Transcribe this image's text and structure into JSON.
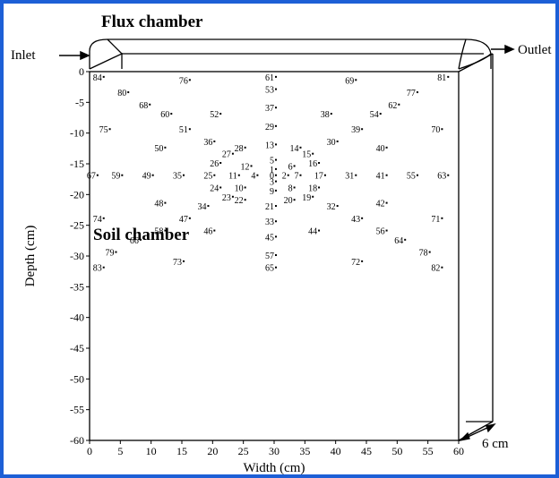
{
  "frame_color": "#1d5fd6",
  "labels": {
    "flux_chamber": "Flux chamber",
    "soil_chamber": "Soil chamber",
    "inlet": "Inlet",
    "outlet": "Outlet",
    "depth_cm": "6 cm",
    "x_axis": "Width (cm)",
    "y_axis": "Depth (cm)"
  },
  "axes": {
    "x_range": [
      0,
      60
    ],
    "y_range": [
      -60,
      0
    ],
    "x_ticks": [
      0,
      5,
      10,
      15,
      20,
      25,
      30,
      35,
      40,
      45,
      50,
      55,
      60
    ],
    "y_ticks": [
      0,
      -5,
      -10,
      -15,
      -20,
      -25,
      -30,
      -35,
      -40,
      -45,
      -50,
      -55,
      -60
    ]
  },
  "chart_data": {
    "type": "scatter",
    "xlabel": "Width (cm)",
    "ylabel": "Depth (cm)",
    "xlim": [
      0,
      60
    ],
    "ylim": [
      -60,
      0
    ],
    "points": [
      {
        "id": "84",
        "x": 2,
        "y": -1
      },
      {
        "id": "76",
        "x": 16,
        "y": -1.5
      },
      {
        "id": "61",
        "x": 30,
        "y": -1
      },
      {
        "id": "69",
        "x": 43,
        "y": -1.5
      },
      {
        "id": "81",
        "x": 58,
        "y": -1
      },
      {
        "id": "80",
        "x": 6,
        "y": -3.5
      },
      {
        "id": "53",
        "x": 30,
        "y": -3
      },
      {
        "id": "77",
        "x": 53,
        "y": -3.5
      },
      {
        "id": "68",
        "x": 9.5,
        "y": -5.5
      },
      {
        "id": "37",
        "x": 30,
        "y": -6
      },
      {
        "id": "62",
        "x": 50,
        "y": -5.5
      },
      {
        "id": "60",
        "x": 13,
        "y": -7
      },
      {
        "id": "52",
        "x": 21,
        "y": -7
      },
      {
        "id": "38",
        "x": 39,
        "y": -7
      },
      {
        "id": "54",
        "x": 47,
        "y": -7
      },
      {
        "id": "75",
        "x": 3,
        "y": -9.5
      },
      {
        "id": "51",
        "x": 16,
        "y": -9.5
      },
      {
        "id": "29",
        "x": 30,
        "y": -9
      },
      {
        "id": "39",
        "x": 44,
        "y": -9.5
      },
      {
        "id": "70",
        "x": 57,
        "y": -9.5
      },
      {
        "id": "36",
        "x": 20,
        "y": -11.5
      },
      {
        "id": "30",
        "x": 40,
        "y": -11.5
      },
      {
        "id": "50",
        "x": 12,
        "y": -12.5
      },
      {
        "id": "28",
        "x": 25,
        "y": -12.5
      },
      {
        "id": "13",
        "x": 30,
        "y": -12
      },
      {
        "id": "14",
        "x": 34,
        "y": -12.5
      },
      {
        "id": "40",
        "x": 48,
        "y": -12.5
      },
      {
        "id": "27",
        "x": 23,
        "y": -13.5
      },
      {
        "id": "15",
        "x": 36,
        "y": -13.5
      },
      {
        "id": "5",
        "x": 30,
        "y": -14.5
      },
      {
        "id": "26",
        "x": 21,
        "y": -15
      },
      {
        "id": "12",
        "x": 26,
        "y": -15.5
      },
      {
        "id": "6",
        "x": 33,
        "y": -15.5
      },
      {
        "id": "16",
        "x": 37,
        "y": -15
      },
      {
        "id": "1",
        "x": 30,
        "y": -16
      },
      {
        "id": "67",
        "x": 1,
        "y": -17
      },
      {
        "id": "59",
        "x": 5,
        "y": -17
      },
      {
        "id": "49",
        "x": 10,
        "y": -17
      },
      {
        "id": "35",
        "x": 15,
        "y": -17
      },
      {
        "id": "25",
        "x": 20,
        "y": -17
      },
      {
        "id": "11",
        "x": 24,
        "y": -17
      },
      {
        "id": "4",
        "x": 27,
        "y": -17
      },
      {
        "id": "0",
        "x": 30,
        "y": -17
      },
      {
        "id": "2",
        "x": 32,
        "y": -17
      },
      {
        "id": "7",
        "x": 34,
        "y": -17
      },
      {
        "id": "17",
        "x": 38,
        "y": -17
      },
      {
        "id": "31",
        "x": 43,
        "y": -17
      },
      {
        "id": "41",
        "x": 48,
        "y": -17
      },
      {
        "id": "55",
        "x": 53,
        "y": -17
      },
      {
        "id": "63",
        "x": 58,
        "y": -17
      },
      {
        "id": "3",
        "x": 30,
        "y": -18
      },
      {
        "id": "24",
        "x": 21,
        "y": -19
      },
      {
        "id": "10",
        "x": 25,
        "y": -19
      },
      {
        "id": "8",
        "x": 33,
        "y": -19
      },
      {
        "id": "18",
        "x": 37,
        "y": -19
      },
      {
        "id": "9",
        "x": 30,
        "y": -19.5
      },
      {
        "id": "23",
        "x": 23,
        "y": -20.5
      },
      {
        "id": "19",
        "x": 36,
        "y": -20.5
      },
      {
        "id": "22",
        "x": 25,
        "y": -21
      },
      {
        "id": "20",
        "x": 33,
        "y": -21
      },
      {
        "id": "48",
        "x": 12,
        "y": -21.5
      },
      {
        "id": "21",
        "x": 30,
        "y": -22
      },
      {
        "id": "42",
        "x": 48,
        "y": -21.5
      },
      {
        "id": "34",
        "x": 19,
        "y": -22
      },
      {
        "id": "32",
        "x": 40,
        "y": -22
      },
      {
        "id": "74",
        "x": 2,
        "y": -24
      },
      {
        "id": "47",
        "x": 16,
        "y": -24
      },
      {
        "id": "33",
        "x": 30,
        "y": -24.5
      },
      {
        "id": "43",
        "x": 44,
        "y": -24
      },
      {
        "id": "71",
        "x": 57,
        "y": -24
      },
      {
        "id": "58",
        "x": 12,
        "y": -26
      },
      {
        "id": "46",
        "x": 20,
        "y": -26
      },
      {
        "id": "44",
        "x": 37,
        "y": -26
      },
      {
        "id": "56",
        "x": 48,
        "y": -26
      },
      {
        "id": "45",
        "x": 30,
        "y": -27
      },
      {
        "id": "66",
        "x": 8,
        "y": -27.5
      },
      {
        "id": "64",
        "x": 51,
        "y": -27.5
      },
      {
        "id": "79",
        "x": 4,
        "y": -29.5
      },
      {
        "id": "57",
        "x": 30,
        "y": -30
      },
      {
        "id": "78",
        "x": 55,
        "y": -29.5
      },
      {
        "id": "73",
        "x": 15,
        "y": -31
      },
      {
        "id": "72",
        "x": 44,
        "y": -31
      },
      {
        "id": "83",
        "x": 2,
        "y": -32
      },
      {
        "id": "65",
        "x": 30,
        "y": -32
      },
      {
        "id": "82",
        "x": 57,
        "y": -32
      }
    ]
  }
}
